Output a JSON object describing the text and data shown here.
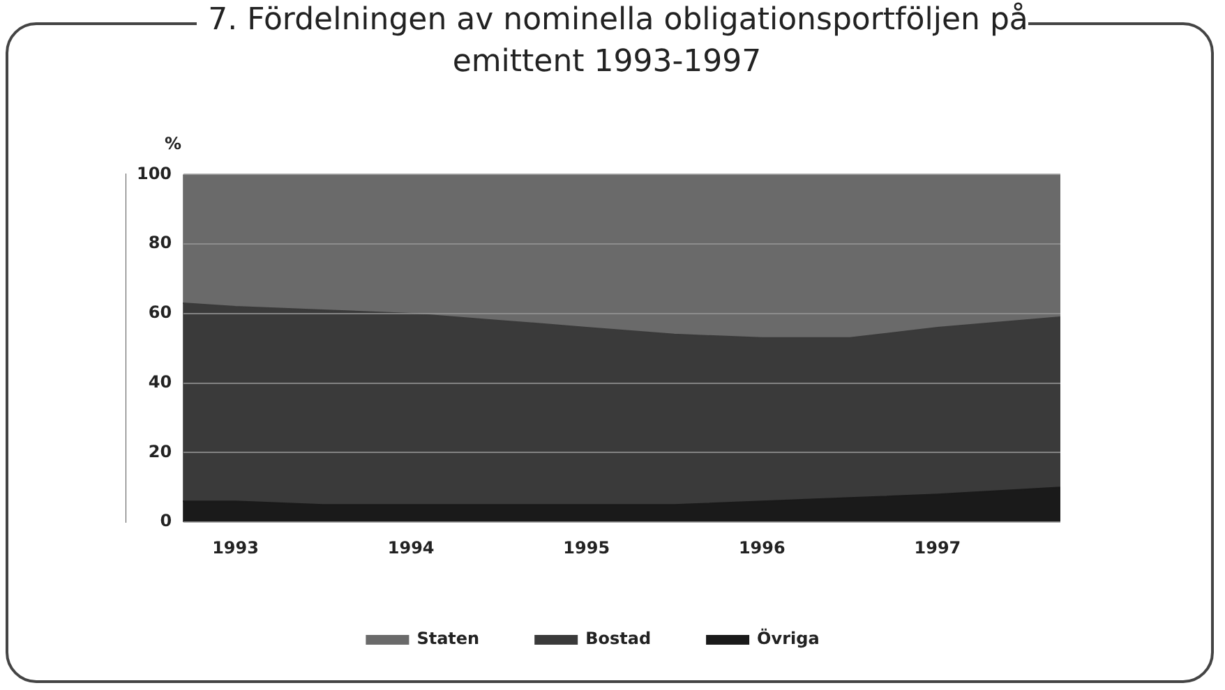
{
  "chart_data": {
    "type": "area",
    "title": "7. Fördelningen av nominella obligationsportföljen på emittent 1993-1997",
    "ylabel": "%",
    "x": [
      1992.7,
      1993,
      1993.5,
      1994,
      1994.5,
      1995,
      1995.5,
      1996,
      1996.5,
      1997,
      1997.7
    ],
    "stacked": true,
    "series": [
      {
        "name": "Övriga",
        "color": "#1a1a1a",
        "values": [
          6,
          6,
          5,
          5,
          5,
          5,
          5,
          6,
          7,
          8,
          10
        ]
      },
      {
        "name": "Bostad",
        "color": "#3a3a3a",
        "values": [
          57,
          56,
          56,
          55,
          53,
          51,
          49,
          47,
          46,
          48,
          49
        ]
      },
      {
        "name": "Staten",
        "color": "#6a6a6a",
        "values": [
          37,
          38,
          39,
          40,
          42,
          44,
          46,
          47,
          47,
          44,
          41
        ]
      }
    ],
    "xlim": [
      1992.7,
      1997.7
    ],
    "xticks": [
      1993,
      1994,
      1995,
      1996,
      1997
    ],
    "ylim": [
      0,
      100
    ],
    "yticks": [
      0,
      20,
      40,
      60,
      80,
      100
    ],
    "grid": "y",
    "legend": "bottom"
  }
}
